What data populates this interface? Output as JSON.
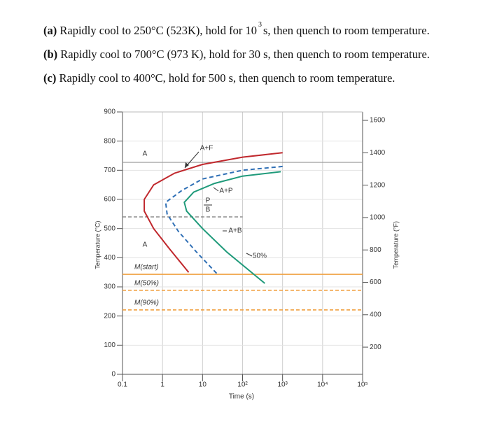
{
  "questions": [
    {
      "label": "(a)",
      "text": "Rapidly cool to 250°C (523K), hold for 10",
      "sup": "3",
      "rest": "s, then quench to room temperature."
    },
    {
      "label": "(b)",
      "text": "Rapidly cool to 700°C (973 K), hold for 30 s, then quench to room temperature.",
      "sup": "",
      "rest": ""
    },
    {
      "label": "(c)",
      "text": "Rapidly cool to 400°C, hold for 500 s, then quench to room temperature.",
      "sup": "",
      "rest": ""
    }
  ],
  "chart_data": {
    "type": "line",
    "xlabel": "Time (s)",
    "ylabel": "Temperature (°C)",
    "y2label": "Temperature (°F)",
    "log_x": true,
    "grid": true,
    "xlim": [
      0.1,
      100000
    ],
    "xticks": [
      0.1,
      1,
      10,
      {
        "value": 100,
        "label": "10²"
      },
      {
        "value": 1000,
        "label": "10³"
      },
      {
        "value": 10000,
        "label": "10⁴"
      },
      {
        "value": 100000,
        "label": "10⁵"
      }
    ],
    "ylim": [
      0,
      900
    ],
    "yticks": [
      0,
      100,
      200,
      300,
      400,
      500,
      600,
      700,
      800,
      900
    ],
    "y2lim": [
      32,
      1652
    ],
    "y2ticks": [
      200,
      400,
      600,
      800,
      1000,
      1200,
      1400,
      1600
    ],
    "series": [
      {
        "color": "#c0282d",
        "dash": false,
        "x": [
          1000,
          100,
          10,
          2,
          0.6,
          0.35,
          0.35,
          0.6,
          1.5,
          4.5
        ],
        "values": [
          760,
          745,
          720,
          690,
          650,
          600,
          560,
          500,
          430,
          350
        ]
      },
      {
        "color": "#2f6fb5",
        "dash": true,
        "x": [
          1000,
          100,
          10,
          3,
          1.2,
          1.3,
          2.5,
          7,
          23
        ],
        "values": [
          713,
          700,
          670,
          630,
          590,
          550,
          490,
          420,
          345
        ]
      },
      {
        "color": "#1f9a7a",
        "dash": false,
        "x": [
          900,
          100,
          20,
          6,
          3.5,
          4,
          10,
          40,
          360
        ],
        "values": [
          695,
          680,
          655,
          625,
          590,
          560,
          500,
          420,
          312
        ]
      }
    ],
    "hlines": [
      {
        "value": 727,
        "color": "#999999",
        "dash": false
      },
      {
        "value": 540,
        "color": "#777777",
        "dash": true,
        "xmax": 100
      },
      {
        "value": 343,
        "color": "#f0a040",
        "dash": false,
        "label": "M(start)"
      },
      {
        "value": 288,
        "color": "#f0a040",
        "dash": true,
        "label": "M(50%)"
      },
      {
        "value": 221,
        "color": "#f0a040",
        "dash": true,
        "label": "M(90%)"
      }
    ],
    "annotations": [
      "A",
      "A+F",
      "A+P",
      "P",
      "B",
      "A+B",
      "A",
      "50%"
    ]
  }
}
